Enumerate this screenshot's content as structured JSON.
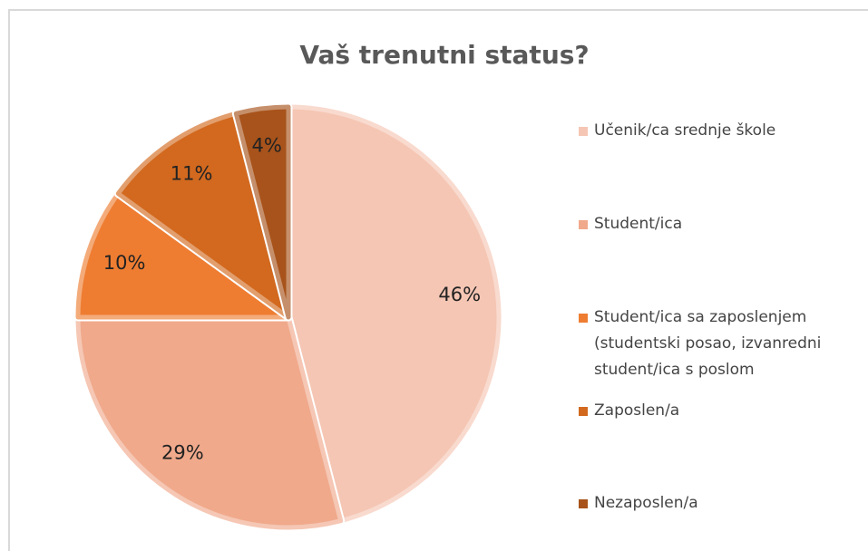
{
  "chart_data": {
    "type": "pie",
    "title": "Vaš trenutni status?",
    "categories": [
      "Učenik/ca srednje škole",
      "Student/ica",
      "Student/ica sa zaposlenjem (studentski posao, izvanredni student/ica s poslom",
      "Zaposlen/a",
      "Nezaposlen/a"
    ],
    "values": [
      46,
      29,
      10,
      11,
      4
    ],
    "value_labels": [
      "46%",
      "29%",
      "10%",
      "11%",
      "4%"
    ],
    "colors": [
      "#f5c6b4",
      "#f0a98b",
      "#ee7d32",
      "#d2691f",
      "#a8531b"
    ],
    "legend": "right"
  }
}
